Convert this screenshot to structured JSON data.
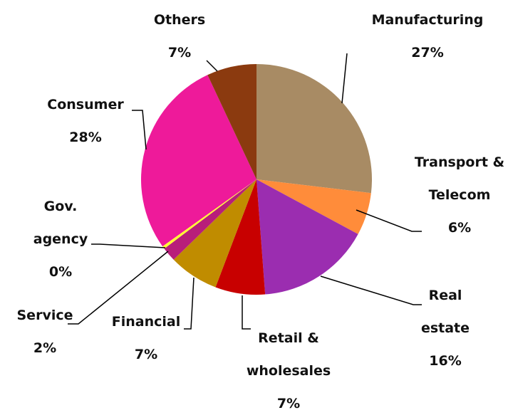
{
  "chart_data": {
    "type": "pie",
    "categories": [
      "Manufacturing",
      "Transport & Telecom",
      "Real estate",
      "Retail & wholesales",
      "Financial",
      "Service",
      "Gov. agency",
      "Consumer",
      "Others"
    ],
    "values": [
      27,
      6,
      16,
      7,
      7,
      2,
      0.4,
      28,
      7
    ],
    "value_labels": [
      "27%",
      "6%",
      "16%",
      "7%",
      "7%",
      "2%",
      "0%",
      "28%",
      "7%"
    ],
    "colors": [
      "#a88b64",
      "#ff8c3a",
      "#9b2db0",
      "#c80000",
      "#c08c00",
      "#b81e7a",
      "#ffff33",
      "#ee1a9a",
      "#8b3a0f"
    ]
  }
}
